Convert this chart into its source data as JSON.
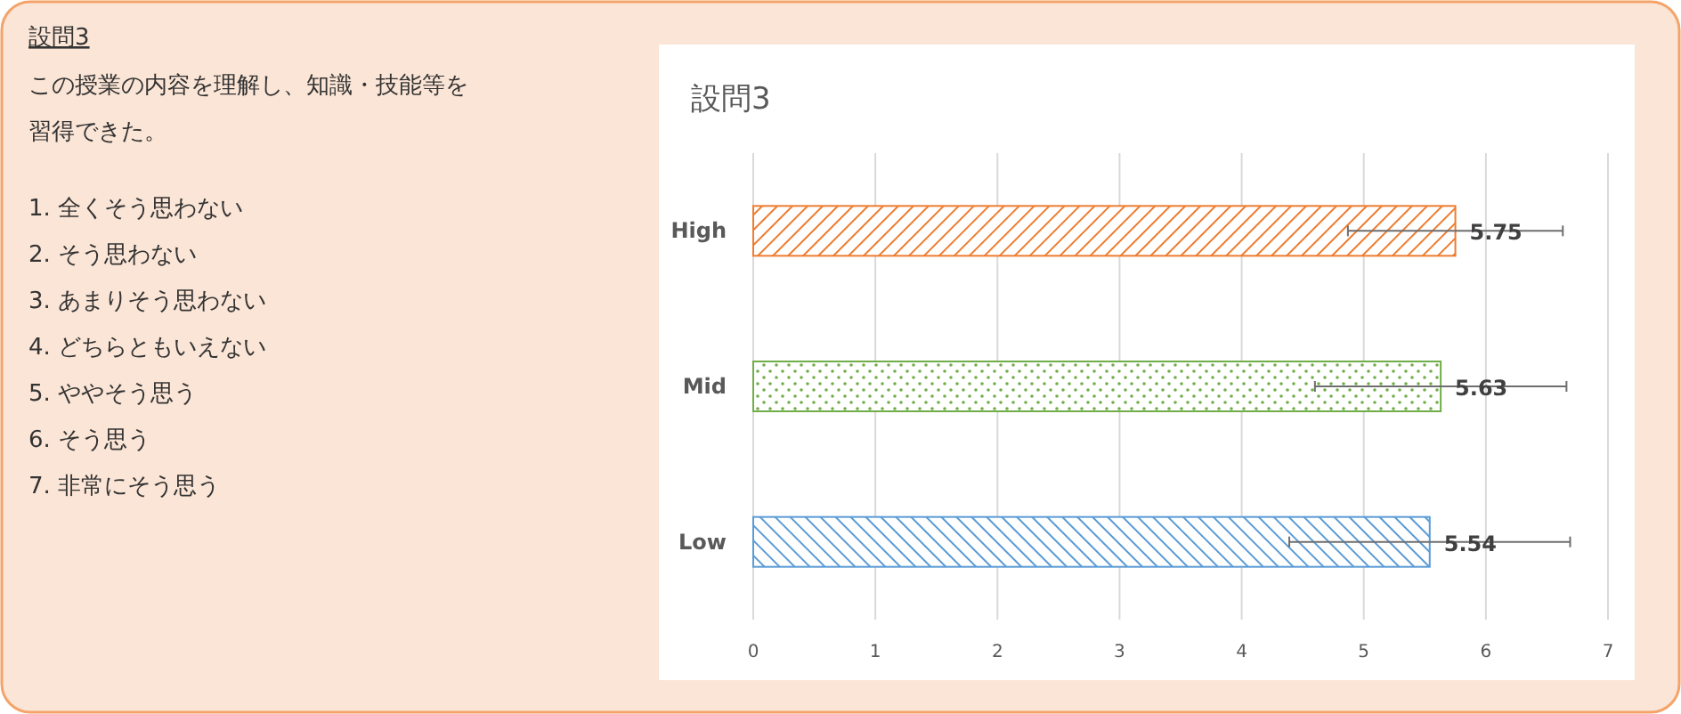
{
  "chart_data": [
    {
      "type": "other",
      "title": "設問3",
      "annotations": [
        "この授業の内容を理解し、知識・技能等を",
        "習得できた。",
        "1. 全くそう思わない",
        "2. そう思わない",
        "3. あまりそう思わない",
        "4. どちらともいえない",
        "5. ややそう思う",
        "6. そう思う",
        "7. 非常にそう思う"
      ]
    },
    {
      "type": "bar",
      "title": "設問3",
      "orientation": "horizontal",
      "categories": [
        "High",
        "Mid",
        "Low"
      ],
      "values": [
        5.75,
        5.63,
        5.54
      ],
      "colors": [
        "#ed7d31",
        "#70ad47",
        "#5b9bd5"
      ],
      "errors": [
        0.88,
        1.03,
        1.15
      ],
      "data_labels": true,
      "xlim": [
        0,
        7
      ],
      "xticks": [
        0,
        1,
        2,
        3,
        4,
        5,
        6,
        7
      ],
      "grid": "x"
    }
  ]
}
